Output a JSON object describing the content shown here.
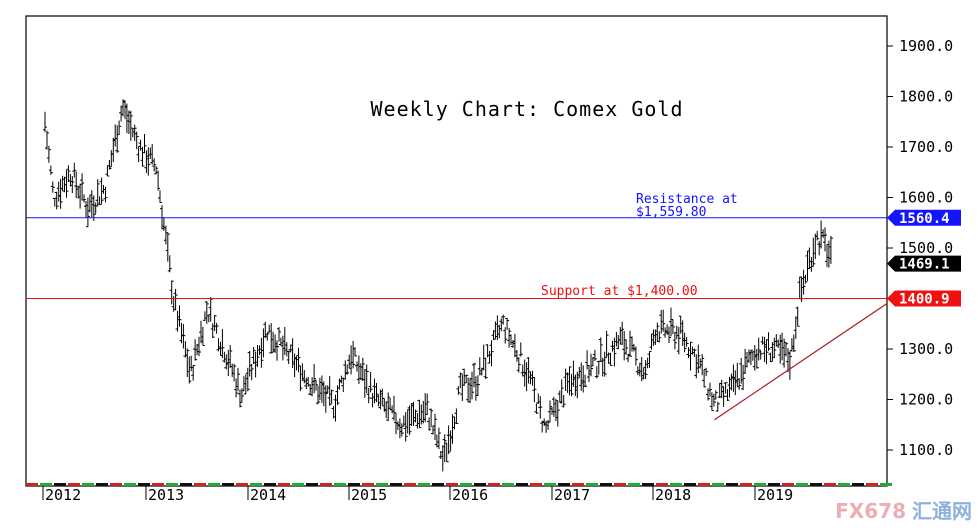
{
  "chart_data": {
    "type": "ohlc",
    "title": "Weekly Chart: Comex Gold",
    "xlabel": "",
    "ylabel": "",
    "ylim": [
      1050,
      1920
    ],
    "y_ticks": [
      "1100.0",
      "1200.0",
      "1300.0",
      "1400.0",
      "1500.0",
      "1600.0",
      "1700.0",
      "1800.0",
      "1900.0"
    ],
    "x_ticks": [
      "2012",
      "2013",
      "2014",
      "2015",
      "2016",
      "2017",
      "2018",
      "2019"
    ],
    "series": [
      {
        "type": "weekly-price",
        "x": [
          "2012-01",
          "2012-02",
          "2012-04",
          "2012-06",
          "2012-08",
          "2012-10",
          "2012-12",
          "2013-02",
          "2013-04",
          "2013-06",
          "2013-08",
          "2013-10",
          "2013-12",
          "2014-03",
          "2014-06",
          "2014-09",
          "2014-11",
          "2015-01",
          "2015-04",
          "2015-07",
          "2015-10",
          "2015-12",
          "2016-02",
          "2016-04",
          "2016-07",
          "2016-10",
          "2016-12",
          "2017-03",
          "2017-06",
          "2017-09",
          "2017-12",
          "2018-01",
          "2018-04",
          "2018-06",
          "2018-08",
          "2018-10",
          "2019-01",
          "2019-03",
          "2019-05",
          "2019-06",
          "2019-08",
          "2019-09",
          "2019-10"
        ],
        "y": [
          1750,
          1600,
          1650,
          1580,
          1620,
          1780,
          1700,
          1660,
          1400,
          1250,
          1380,
          1300,
          1210,
          1340,
          1280,
          1220,
          1190,
          1290,
          1200,
          1150,
          1180,
          1080,
          1220,
          1240,
          1350,
          1250,
          1140,
          1240,
          1270,
          1320,
          1250,
          1340,
          1330,
          1280,
          1190,
          1220,
          1300,
          1300,
          1280,
          1400,
          1520,
          1510,
          1469
        ]
      }
    ],
    "annotations": {
      "resistance_label_1": "Resistance at",
      "resistance_label_2": "$1,559.80",
      "resistance_value": 1559.8,
      "resistance_tag": "1560.4",
      "resistance_color": "#1414ff",
      "support_label": "Support at $1,400.00",
      "support_value": 1400,
      "support_tag": "1400.9",
      "support_color": "#ee1111",
      "last_price_tag": "1469.1",
      "last_price_value": 1469.1,
      "trendline": {
        "from": [
          "2018-08",
          1160
        ],
        "to": [
          "2019-11",
          1390
        ],
        "color": "#aa1a22"
      }
    },
    "grid": false,
    "legend": "none"
  },
  "watermark": {
    "text1": "FX678",
    "text2": "汇通网"
  }
}
